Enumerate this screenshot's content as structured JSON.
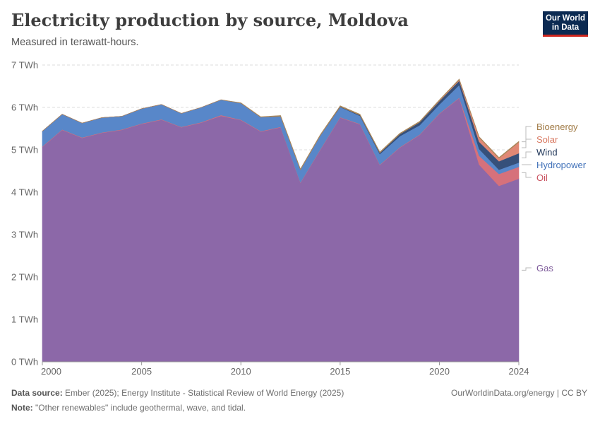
{
  "header": {
    "title": "Electricity production by source, Moldova",
    "subtitle": "Measured in terawatt-hours."
  },
  "logo": {
    "line1": "Our World",
    "line2": "in Data"
  },
  "footer": {
    "source_label": "Data source:",
    "source_text": "Ember (2025); Energy Institute - Statistical Review of World Energy (2025)",
    "note_label": "Note:",
    "note_text": "\"Other renewables\" include geothermal, wave, and tidal.",
    "credit": "OurWorldinData.org/energy | CC BY"
  },
  "chart_data": {
    "type": "area",
    "stacked": true,
    "title": "Electricity production by source, Moldova",
    "subtitle": "Measured in terawatt-hours.",
    "ylabel": "",
    "xlabel": "",
    "unit": "TWh",
    "ylim": [
      0,
      7
    ],
    "xlim": [
      2000,
      2024
    ],
    "grid": "horizontal dashed",
    "legend": "right, inline labels",
    "yticks": [
      "0 TWh",
      "1 TWh",
      "2 TWh",
      "3 TWh",
      "4 TWh",
      "5 TWh",
      "6 TWh",
      "7 TWh"
    ],
    "xticks": [
      "2000",
      "2005",
      "2010",
      "2015",
      "2020",
      "2024"
    ],
    "x": [
      2000,
      2001,
      2002,
      2003,
      2004,
      2005,
      2006,
      2007,
      2008,
      2009,
      2010,
      2011,
      2012,
      2013,
      2014,
      2015,
      2016,
      2017,
      2018,
      2019,
      2020,
      2021,
      2022,
      2023,
      2024
    ],
    "series": [
      {
        "name": "Gas",
        "color": "#8c68a8",
        "values": [
          5.07,
          5.47,
          5.28,
          5.4,
          5.47,
          5.61,
          5.71,
          5.53,
          5.64,
          5.8,
          5.7,
          5.43,
          5.53,
          4.22,
          5.0,
          5.76,
          5.6,
          4.64,
          5.05,
          5.35,
          5.85,
          6.22,
          4.65,
          4.15,
          4.32
        ]
      },
      {
        "name": "Oil",
        "color": "#d6717b",
        "values": [
          0.01,
          0.01,
          0.01,
          0.01,
          0.01,
          0.01,
          0.01,
          0.01,
          0.01,
          0.02,
          0.01,
          0.01,
          0.01,
          0.01,
          0.01,
          0.01,
          0.01,
          0.01,
          0.01,
          0.01,
          0.01,
          0.01,
          0.21,
          0.28,
          0.28
        ]
      },
      {
        "name": "Hydropower",
        "color": "#5887c9",
        "values": [
          0.36,
          0.36,
          0.34,
          0.35,
          0.31,
          0.35,
          0.35,
          0.32,
          0.35,
          0.36,
          0.39,
          0.33,
          0.25,
          0.3,
          0.33,
          0.24,
          0.19,
          0.25,
          0.26,
          0.22,
          0.21,
          0.3,
          0.16,
          0.1,
          0.1
        ]
      },
      {
        "name": "Wind",
        "color": "#36507a",
        "values": [
          0,
          0,
          0,
          0,
          0,
          0,
          0,
          0,
          0,
          0,
          0,
          0,
          0,
          0,
          0,
          0.01,
          0.02,
          0.03,
          0.05,
          0.07,
          0.08,
          0.1,
          0.17,
          0.2,
          0.22
        ]
      },
      {
        "name": "Solar",
        "color": "#e08875",
        "values": [
          0,
          0,
          0,
          0,
          0,
          0,
          0,
          0,
          0,
          0,
          0,
          0,
          0,
          0,
          0,
          0,
          0,
          0,
          0,
          0,
          0.01,
          0.02,
          0.1,
          0.07,
          0.26
        ]
      },
      {
        "name": "Bioenergy",
        "color": "#a8875a",
        "values": [
          0,
          0,
          0,
          0,
          0,
          0,
          0,
          0,
          0,
          0,
          0.01,
          0.01,
          0.02,
          0.02,
          0.02,
          0.02,
          0.02,
          0.02,
          0.02,
          0.02,
          0.02,
          0.02,
          0.02,
          0.02,
          0.02
        ]
      }
    ],
    "legend_labels": [
      {
        "name": "Bioenergy",
        "color": "#a07a45"
      },
      {
        "name": "Solar",
        "color": "#d97a63"
      },
      {
        "name": "Wind",
        "color": "#1e3558"
      },
      {
        "name": "Hydropower",
        "color": "#3f70b8"
      },
      {
        "name": "Oil",
        "color": "#c9505e"
      },
      {
        "name": "Gas",
        "color": "#7d5a9a"
      }
    ]
  }
}
